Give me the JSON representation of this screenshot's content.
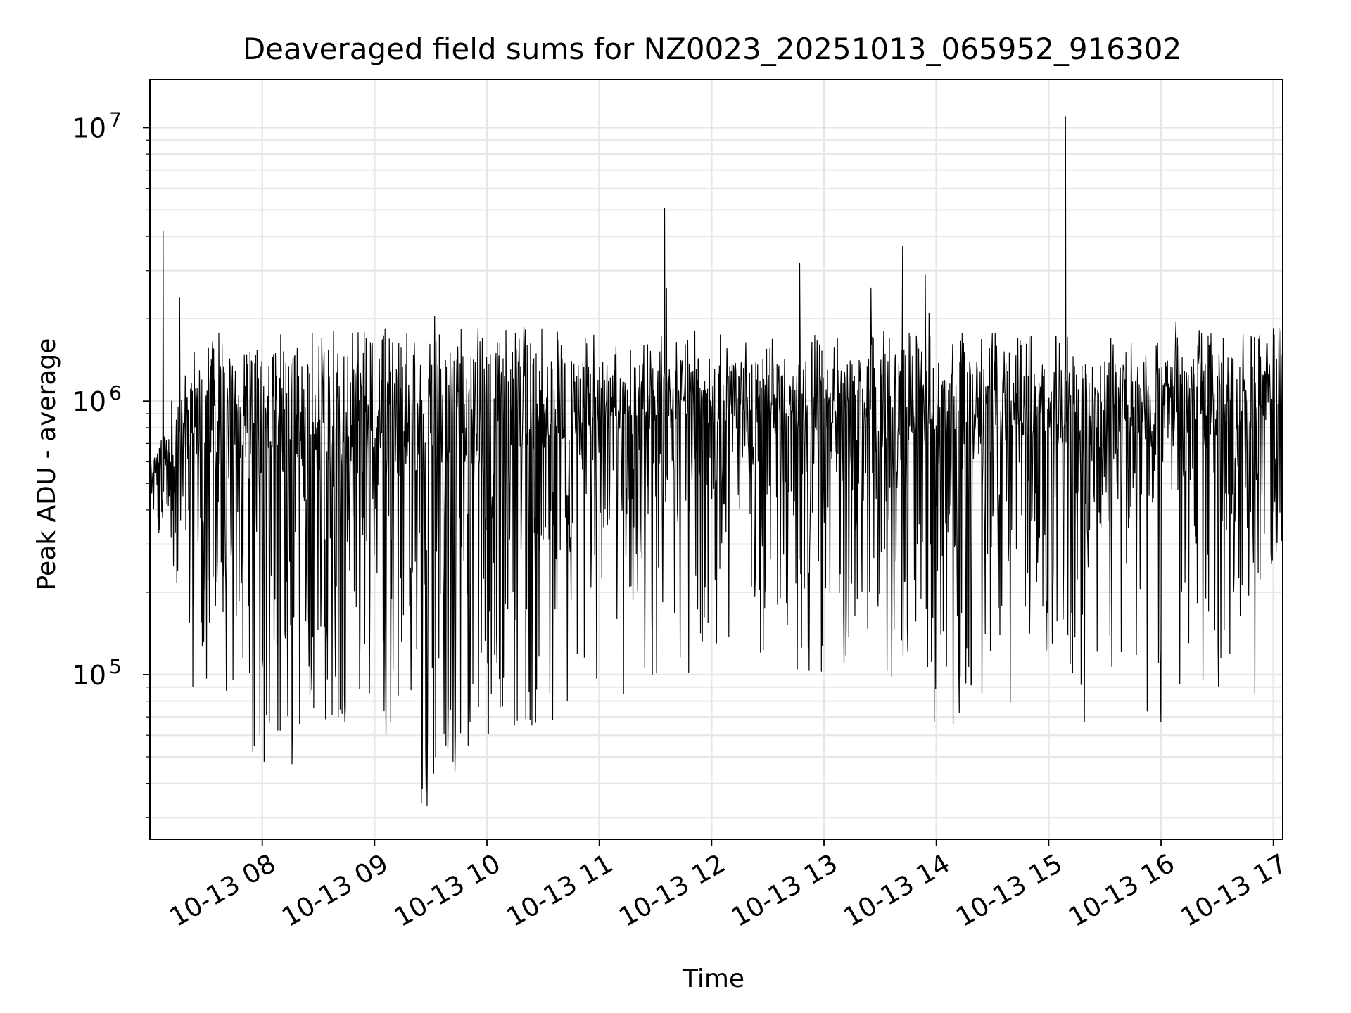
{
  "chart_data": {
    "type": "line",
    "title": "Deaveraged field sums for NZ0023_20251013_065952_916302",
    "xlabel": "Time",
    "ylabel": "Peak ADU - average",
    "yscale": "log",
    "grid": true,
    "x_range": [
      "2025-10-13 07:00",
      "2025-10-13 17:05"
    ],
    "ylim": [
      25000,
      15000000
    ],
    "x_tick_labels": [
      "10-13 08",
      "10-13 09",
      "10-13 10",
      "10-13 11",
      "10-13 12",
      "10-13 13",
      "10-13 14",
      "10-13 15",
      "10-13 16",
      "10-13 17"
    ],
    "x_ticks": [
      "2025-10-13 08:00",
      "2025-10-13 09:00",
      "2025-10-13 10:00",
      "2025-10-13 11:00",
      "2025-10-13 12:00",
      "2025-10-13 13:00",
      "2025-10-13 14:00",
      "2025-10-13 15:00",
      "2025-10-13 16:00",
      "2025-10-13 17:00"
    ],
    "y_ticks": [
      {
        "value": 100000,
        "base": "10",
        "exp": "5"
      },
      {
        "value": 1000000,
        "base": "10",
        "exp": "6"
      },
      {
        "value": 10000000,
        "base": "10",
        "exp": "7"
      }
    ],
    "series": [
      {
        "color": "#000000",
        "band": {
          "x": [
            "2025-10-13 07:00",
            "2025-10-13 07:30",
            "2025-10-13 08:00",
            "2025-10-13 08:30",
            "2025-10-13 09:00",
            "2025-10-13 09:30",
            "2025-10-13 10:00",
            "2025-10-13 10:30",
            "2025-10-13 11:00",
            "2025-10-13 11:30",
            "2025-10-13 12:00",
            "2025-10-13 12:30",
            "2025-10-13 13:00",
            "2025-10-13 13:30",
            "2025-10-13 14:00",
            "2025-10-13 14:30",
            "2025-10-13 15:00",
            "2025-10-13 15:30",
            "2025-10-13 16:00",
            "2025-10-13 16:30",
            "2025-10-13 17:05"
          ],
          "typical_high": [
            600000,
            1500000,
            1500000,
            1500000,
            1500000,
            1400000,
            1550000,
            1500000,
            1350000,
            1450000,
            1450000,
            1400000,
            1400000,
            1450000,
            1400000,
            1450000,
            1400000,
            1400000,
            1400000,
            1500000,
            1500000
          ],
          "typical_low": [
            450000,
            200000,
            150000,
            160000,
            150000,
            150000,
            200000,
            250000,
            330000,
            350000,
            400000,
            350000,
            350000,
            280000,
            300000,
            260000,
            300000,
            280000,
            400000,
            300000,
            350000
          ],
          "min": [
            420000,
            90000,
            50000,
            70000,
            60000,
            33000,
            55000,
            65000,
            85000,
            95000,
            100000,
            100000,
            95000,
            90000,
            65000,
            80000,
            70000,
            80000,
            70000,
            85000,
            300000
          ]
        },
        "spikes": [
          {
            "x": "2025-10-13 07:07",
            "y": 4200000
          },
          {
            "x": "2025-10-13 07:16",
            "y": 2400000
          },
          {
            "x": "2025-10-13 09:30",
            "y": 1150000
          },
          {
            "x": "2025-10-13 09:32",
            "y": 2050000
          },
          {
            "x": "2025-10-13 10:57",
            "y": 1750000
          },
          {
            "x": "2025-10-13 11:35",
            "y": 5100000
          },
          {
            "x": "2025-10-13 11:36",
            "y": 2600000
          },
          {
            "x": "2025-10-13 12:47",
            "y": 3200000
          },
          {
            "x": "2025-10-13 13:25",
            "y": 2600000
          },
          {
            "x": "2025-10-13 13:42",
            "y": 3700000
          },
          {
            "x": "2025-10-13 13:54",
            "y": 2900000
          },
          {
            "x": "2025-10-13 13:56",
            "y": 2100000
          },
          {
            "x": "2025-10-13 15:09",
            "y": 11000000
          },
          {
            "x": "2025-10-13 16:08",
            "y": 1950000
          },
          {
            "x": "2025-10-13 17:00",
            "y": 1850000
          }
        ],
        "dips": [
          {
            "x": "2025-10-13 07:23",
            "y": 90000
          },
          {
            "x": "2025-10-13 07:55",
            "y": 52000
          },
          {
            "x": "2025-10-13 08:01",
            "y": 48000
          },
          {
            "x": "2025-10-13 08:16",
            "y": 47000
          },
          {
            "x": "2025-10-13 08:20",
            "y": 66000
          },
          {
            "x": "2025-10-13 09:25",
            "y": 34000
          },
          {
            "x": "2025-10-13 09:28",
            "y": 33000
          },
          {
            "x": "2025-10-13 09:38",
            "y": 55000
          },
          {
            "x": "2025-10-13 09:42",
            "y": 48000
          },
          {
            "x": "2025-10-13 09:50",
            "y": 55000
          },
          {
            "x": "2025-10-13 10:35",
            "y": 68000
          },
          {
            "x": "2025-10-13 10:43",
            "y": 80000
          },
          {
            "x": "2025-10-13 11:13",
            "y": 85000
          },
          {
            "x": "2025-10-13 13:59",
            "y": 67000
          },
          {
            "x": "2025-10-13 14:09",
            "y": 66000
          },
          {
            "x": "2025-10-13 15:19",
            "y": 67000
          },
          {
            "x": "2025-10-13 16:00",
            "y": 67000
          },
          {
            "x": "2025-10-13 16:50",
            "y": 85000
          }
        ]
      }
    ]
  }
}
